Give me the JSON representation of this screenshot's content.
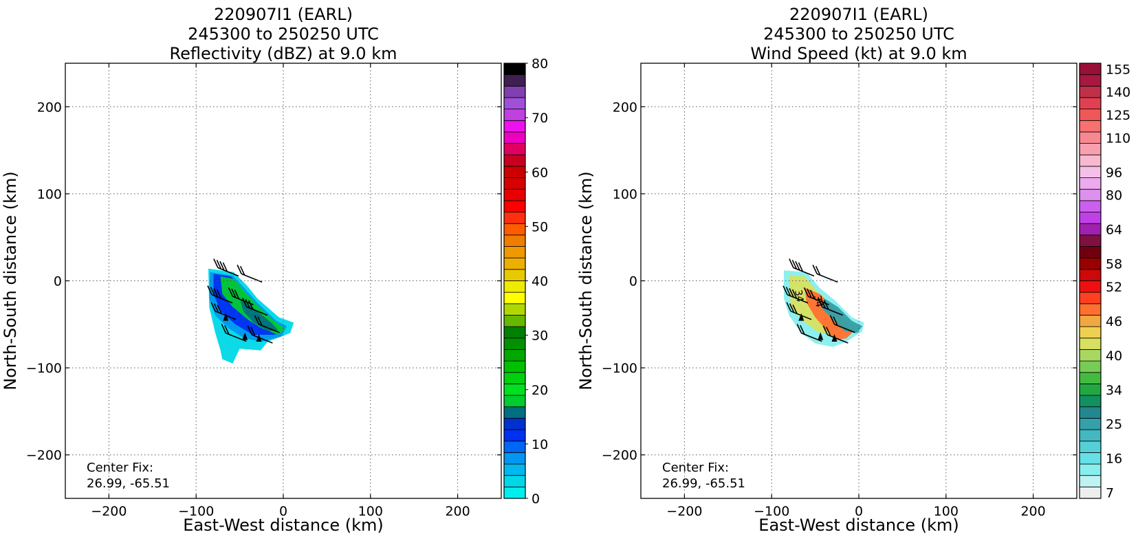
{
  "chart_data": [
    {
      "type": "heatmap",
      "title": [
        "220907I1 (EARL)",
        "245300 to 250250 UTC",
        "Reflectivity (dBZ) at 9.0 km"
      ],
      "xlabel": "East-West distance (km)",
      "ylabel": "North-South distance (km)",
      "xlim": [
        -250,
        250
      ],
      "ylim": [
        -250,
        250
      ],
      "xticks": [
        -200,
        -100,
        0,
        100,
        200
      ],
      "yticks": [
        -200,
        -100,
        0,
        100,
        200
      ],
      "xtick_labels": [
        "−200",
        "−100",
        "0",
        "100",
        "200"
      ],
      "ytick_labels": [
        "−200",
        "−100",
        "0",
        "100",
        "200"
      ],
      "grid": true,
      "annotation": [
        "Center Fix:",
        "26.99, -65.51"
      ],
      "colorbar": {
        "label_ticks": [
          "0",
          "10",
          "20",
          "30",
          "40",
          "50",
          "60",
          "70",
          "80"
        ],
        "colors": [
          "#00eeee",
          "#00d8e8",
          "#00b8ee",
          "#0098f0",
          "#0066f5",
          "#0030f0",
          "#0030d0",
          "#007080",
          "#00cc30",
          "#00e020",
          "#00d010",
          "#00c000",
          "#00a800",
          "#009000",
          "#008000",
          "#66b800",
          "#b0d800",
          "#ffff00",
          "#eeea00",
          "#e8c800",
          "#eeb000",
          "#f09800",
          "#f07c00",
          "#ff5c00",
          "#ff3010",
          "#ff0000",
          "#e80000",
          "#d80000",
          "#cc0000",
          "#c80020",
          "#e00060",
          "#ee00c0",
          "#ee10ee",
          "#c040e0",
          "#a050d8",
          "#8040b0",
          "#402050",
          "#000000"
        ]
      },
      "overlays": [
        "reflectivity field",
        "wind barbs"
      ]
    },
    {
      "type": "heatmap",
      "title": [
        "220907I1 (EARL)",
        "245300 to 250250 UTC",
        "Wind Speed (kt) at 9.0 km"
      ],
      "xlabel": "East-West distance (km)",
      "ylabel": "North-South distance (km)",
      "xlim": [
        -250,
        250
      ],
      "ylim": [
        -250,
        250
      ],
      "xticks": [
        -200,
        -100,
        0,
        100,
        200
      ],
      "yticks": [
        -200,
        -100,
        0,
        100,
        200
      ],
      "xtick_labels": [
        "−200",
        "−100",
        "0",
        "100",
        "200"
      ],
      "ytick_labels": [
        "−200",
        "−100",
        "0",
        "100",
        "200"
      ],
      "grid": true,
      "annotation": [
        "Center Fix:",
        "26.99, -65.51"
      ],
      "colorbar": {
        "label_ticks": [
          "7",
          "16",
          "25",
          "34",
          "40",
          "46",
          "52",
          "58",
          "64",
          "80",
          "96",
          "110",
          "125",
          "140",
          "155"
        ],
        "colors": [
          "#eeeeee",
          "#bff2f2",
          "#88eeee",
          "#66e0e6",
          "#55d0d6",
          "#44b8c0",
          "#33a0aa",
          "#228890",
          "#119060",
          "#22a840",
          "#44bb40",
          "#77cc55",
          "#a8d860",
          "#d8e060",
          "#f0d050",
          "#f0a840",
          "#ff7030",
          "#ff4020",
          "#ee1010",
          "#cc0808",
          "#990000",
          "#700010",
          "#801040",
          "#a020b0",
          "#c040e8",
          "#cc60ee",
          "#dd90ee",
          "#eeaaee",
          "#f4c0e8",
          "#f8b8d0",
          "#f8a0b0",
          "#f88890",
          "#f87070",
          "#f05858",
          "#e04050",
          "#c03048",
          "#a81840",
          "#981038"
        ]
      },
      "overlays": [
        "wind speed field",
        "wind barbs"
      ],
      "contour_labels": [
        "34",
        "34"
      ]
    }
  ]
}
